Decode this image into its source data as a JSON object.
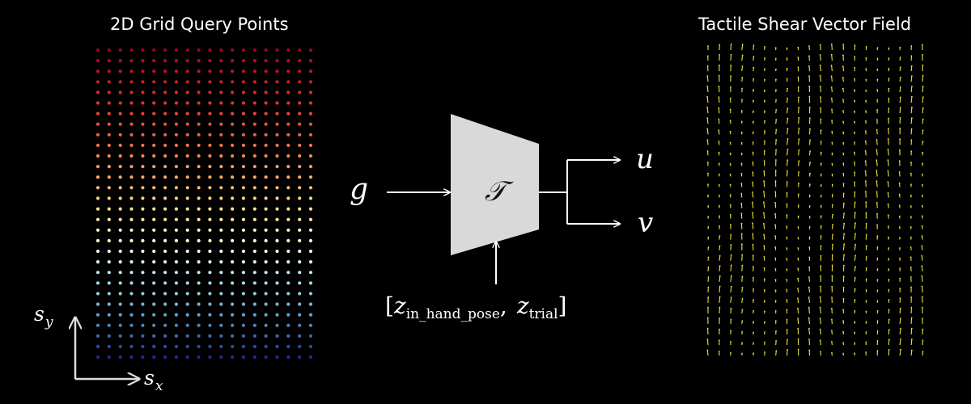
{
  "left_panel": {
    "title": "2D Grid Query Points",
    "grid": {
      "cols": 20,
      "rows": 30,
      "colormap": "RdYlBu (red top → blue bottom)"
    },
    "axis_x_label": {
      "base": "s",
      "sub": "x"
    },
    "axis_y_label": {
      "base": "s",
      "sub": "y"
    }
  },
  "center_diagram": {
    "input_label": "g",
    "block_label": "𝒯",
    "output_1": "u",
    "output_2": "v",
    "conditioning": {
      "open": "[",
      "z1_base": "z",
      "z1_sub": "in_hand_pose",
      "separator": ",",
      "z2_base": "z",
      "z2_sub": "trial",
      "close": "]"
    },
    "block_color": "#d9d9d9"
  },
  "right_panel": {
    "title": "Tactile Shear Vector Field",
    "field": {
      "cols": 20,
      "rows": 30,
      "color": "#e8e23a",
      "direction": "mostly upward"
    }
  },
  "colors": {
    "background": "#000000",
    "foreground": "#ffffff"
  }
}
